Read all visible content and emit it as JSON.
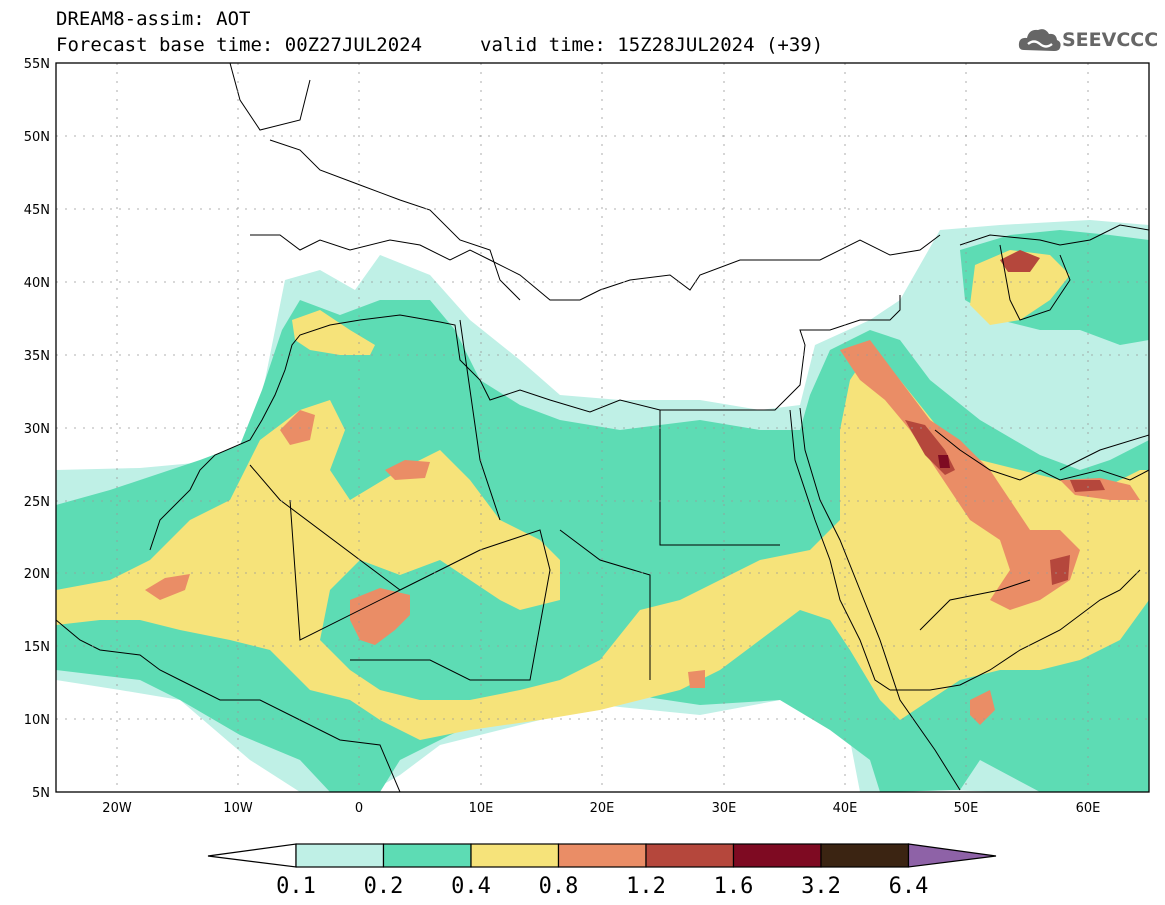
{
  "header": {
    "title": "DREAM8-assim: AOT",
    "base_time": "Forecast base time: 00Z27JUL2024",
    "valid_time": "valid time: 15Z28JUL2024 (+39)"
  },
  "logo": {
    "name": "cloud-logo-icon",
    "text": "SEEVCCC"
  },
  "map": {
    "lat_labels": [
      "55N",
      "50N",
      "45N",
      "40N",
      "35N",
      "30N",
      "25N",
      "20N",
      "15N",
      "10N",
      "5N"
    ],
    "lon_labels": [
      "20W",
      "10W",
      "0",
      "10E",
      "20E",
      "30E",
      "40E",
      "50E",
      "60E"
    ],
    "lon_range": [
      -25,
      65
    ],
    "lat_range": [
      5,
      55
    ]
  },
  "colorbar": {
    "labels": [
      "0.1",
      "0.2",
      "0.4",
      "0.8",
      "1.2",
      "1.6",
      "3.2",
      "6.4"
    ],
    "colors": [
      "#ffffff",
      "#bff0e6",
      "#5ddcb4",
      "#f6e37a",
      "#ea8d66",
      "#b5473c",
      "#7e0a22",
      "#3b2412",
      "#8e62a7"
    ]
  }
}
